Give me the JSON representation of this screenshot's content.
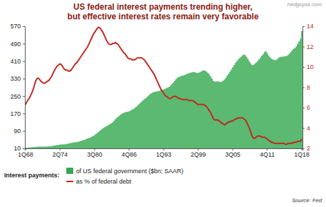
{
  "chart_data": {
    "type": "bar",
    "title": [
      "US federal interest payments trending higher,",
      "but effective interest rates remain very favorable"
    ],
    "annotations": [
      "hedgopia.com",
      "Source: Fed"
    ],
    "legend_title": "Interest payments:",
    "legend": "bottom",
    "grid": false,
    "categories": [
      "1Q68",
      null,
      null,
      null,
      null,
      null,
      null,
      null,
      null,
      null,
      null,
      null,
      null,
      null,
      null,
      null,
      null,
      null,
      null,
      null,
      null,
      null,
      null,
      null,
      null,
      "2Q74",
      null,
      null,
      null,
      null,
      null,
      null,
      null,
      null,
      null,
      null,
      null,
      null,
      null,
      null,
      null,
      null,
      null,
      null,
      null,
      null,
      null,
      null,
      null,
      null,
      "3Q80",
      null,
      null,
      null,
      null,
      null,
      null,
      null,
      null,
      null,
      null,
      null,
      null,
      null,
      null,
      null,
      null,
      null,
      null,
      null,
      null,
      null,
      null,
      null,
      null,
      "4Q86",
      null,
      null,
      null,
      null,
      null,
      null,
      null,
      null,
      null,
      null,
      null,
      null,
      null,
      null,
      null,
      null,
      null,
      null,
      null,
      null,
      null,
      null,
      null,
      null,
      "1Q93",
      null,
      null,
      null,
      null,
      null,
      null,
      null,
      null,
      null,
      null,
      null,
      null,
      null,
      null,
      null,
      null,
      null,
      null,
      null,
      null,
      null,
      null,
      null,
      null,
      "2Q99",
      null,
      null,
      null,
      null,
      null,
      null,
      null,
      null,
      null,
      null,
      null,
      null,
      null,
      null,
      null,
      null,
      null,
      null,
      null,
      null,
      null,
      null,
      null,
      null,
      "3Q05",
      null,
      null,
      null,
      null,
      null,
      null,
      null,
      null,
      null,
      null,
      null,
      null,
      null,
      null,
      null,
      null,
      null,
      null,
      null,
      null,
      null,
      null,
      null,
      null,
      "4Q11",
      null,
      null,
      null,
      null,
      null,
      null,
      null,
      null,
      null,
      null,
      null,
      null,
      null,
      null,
      null,
      null,
      null,
      null,
      null,
      null,
      null,
      null,
      null,
      null,
      "1Q18"
    ],
    "ylim": [
      10,
      570
    ],
    "yticks": [
      10,
      90,
      170,
      250,
      330,
      410,
      490,
      570
    ],
    "y2lim": [
      2,
      14
    ],
    "y2ticks": [
      2,
      4,
      6,
      8,
      10,
      12,
      14
    ],
    "series": [
      {
        "name": "of US federal government ($bn; SAAR)",
        "type": "bar",
        "color": "#33a84f",
        "values": [
          13,
          13,
          14,
          14,
          15,
          15,
          16,
          16,
          17,
          18,
          18,
          18,
          18,
          18,
          18,
          18,
          19,
          19,
          20,
          20,
          22,
          23,
          24,
          25,
          26,
          27,
          28,
          28,
          28,
          29,
          30,
          32,
          33,
          35,
          36,
          37,
          38,
          39,
          40,
          42,
          44,
          46,
          48,
          50,
          53,
          56,
          58,
          60,
          64,
          67,
          71,
          76,
          81,
          86,
          92,
          97,
          102,
          106,
          110,
          113,
          117,
          121,
          125,
          129,
          136,
          143,
          150,
          155,
          160,
          165,
          170,
          173,
          175,
          177,
          178,
          180,
          183,
          187,
          191,
          195,
          200,
          206,
          212,
          218,
          224,
          230,
          236,
          240,
          246,
          252,
          258,
          262,
          266,
          268,
          270,
          271,
          272,
          274,
          276,
          278,
          280,
          283,
          286,
          289,
          292,
          298,
          305,
          312,
          320,
          328,
          334,
          338,
          340,
          342,
          344,
          346,
          349,
          352,
          354,
          356,
          358,
          360,
          360,
          358,
          356,
          356,
          358,
          362,
          366,
          368,
          366,
          362,
          356,
          350,
          340,
          330,
          320,
          316,
          316,
          318,
          316,
          314,
          316,
          320,
          326,
          334,
          344,
          352,
          362,
          372,
          382,
          392,
          402,
          410,
          418,
          424,
          430,
          436,
          440,
          438,
          430,
          420,
          410,
          400,
          392,
          392,
          398,
          404,
          410,
          418,
          426,
          434,
          442,
          452,
          456,
          446,
          436,
          428,
          422,
          418,
          416,
          414,
          418,
          424,
          428,
          430,
          430,
          432,
          432,
          434,
          438,
          444,
          452,
          460,
          466,
          470,
          478,
          490,
          500,
          512,
          548
        ]
      },
      {
        "name": "as % of federal debt",
        "type": "line",
        "axis": "y2",
        "color": "#c0281e",
        "values": [
          6.3,
          6.6,
          6.8,
          7.0,
          7.3,
          7.6,
          8.0,
          8.5,
          8.8,
          8.9,
          8.8,
          8.6,
          8.5,
          8.4,
          8.4,
          8.5,
          8.6,
          8.7,
          8.9,
          9.1,
          9.4,
          9.7,
          9.9,
          10.1,
          10.2,
          10.3,
          10.2,
          10.0,
          9.8,
          9.7,
          9.7,
          9.6,
          9.6,
          9.7,
          9.9,
          10.1,
          10.3,
          10.4,
          10.6,
          10.8,
          11.0,
          11.2,
          11.4,
          11.6,
          11.8,
          12.0,
          12.3,
          12.6,
          12.9,
          13.2,
          13.4,
          13.6,
          13.8,
          13.9,
          13.8,
          13.6,
          13.4,
          13.1,
          12.8,
          12.5,
          12.3,
          12.2,
          12.2,
          12.3,
          12.3,
          12.4,
          12.3,
          12.2,
          12.0,
          11.8,
          11.6,
          11.4,
          11.3,
          11.1,
          10.9,
          10.8,
          10.8,
          10.7,
          10.7,
          10.7,
          10.8,
          10.9,
          10.9,
          10.9,
          10.9,
          10.8,
          10.7,
          10.5,
          10.3,
          10.1,
          9.9,
          9.7,
          9.5,
          9.3,
          9.0,
          8.7,
          8.4,
          8.1,
          7.8,
          7.6,
          7.4,
          7.2,
          7.1,
          7.0,
          6.9,
          6.9,
          7.0,
          7.1,
          7.1,
          7.1,
          7.0,
          6.9,
          6.9,
          6.8,
          6.8,
          6.8,
          6.8,
          6.8,
          6.7,
          6.7,
          6.7,
          6.7,
          6.6,
          6.5,
          6.4,
          6.3,
          6.3,
          6.3,
          6.3,
          6.3,
          6.2,
          6.1,
          5.9,
          5.7,
          5.5,
          5.2,
          4.9,
          4.8,
          4.8,
          4.8,
          4.7,
          4.6,
          4.5,
          4.4,
          4.3,
          4.4,
          4.5,
          4.6,
          4.6,
          4.7,
          4.7,
          4.8,
          4.9,
          4.9,
          5.0,
          5.0,
          5.0,
          5.0,
          4.9,
          4.8,
          4.6,
          4.3,
          4.0,
          3.6,
          3.2,
          3.0,
          3.0,
          3.1,
          3.2,
          3.2,
          3.2,
          3.1,
          3.1,
          3.1,
          3.0,
          2.9,
          2.8,
          2.7,
          2.6,
          2.6,
          2.5,
          2.5,
          2.5,
          2.5,
          2.5,
          2.5,
          2.5,
          2.5,
          2.4,
          2.4,
          2.5,
          2.5,
          2.5,
          2.5,
          2.6,
          2.6,
          2.6,
          2.7,
          2.7,
          2.7,
          2.9
        ]
      }
    ]
  }
}
